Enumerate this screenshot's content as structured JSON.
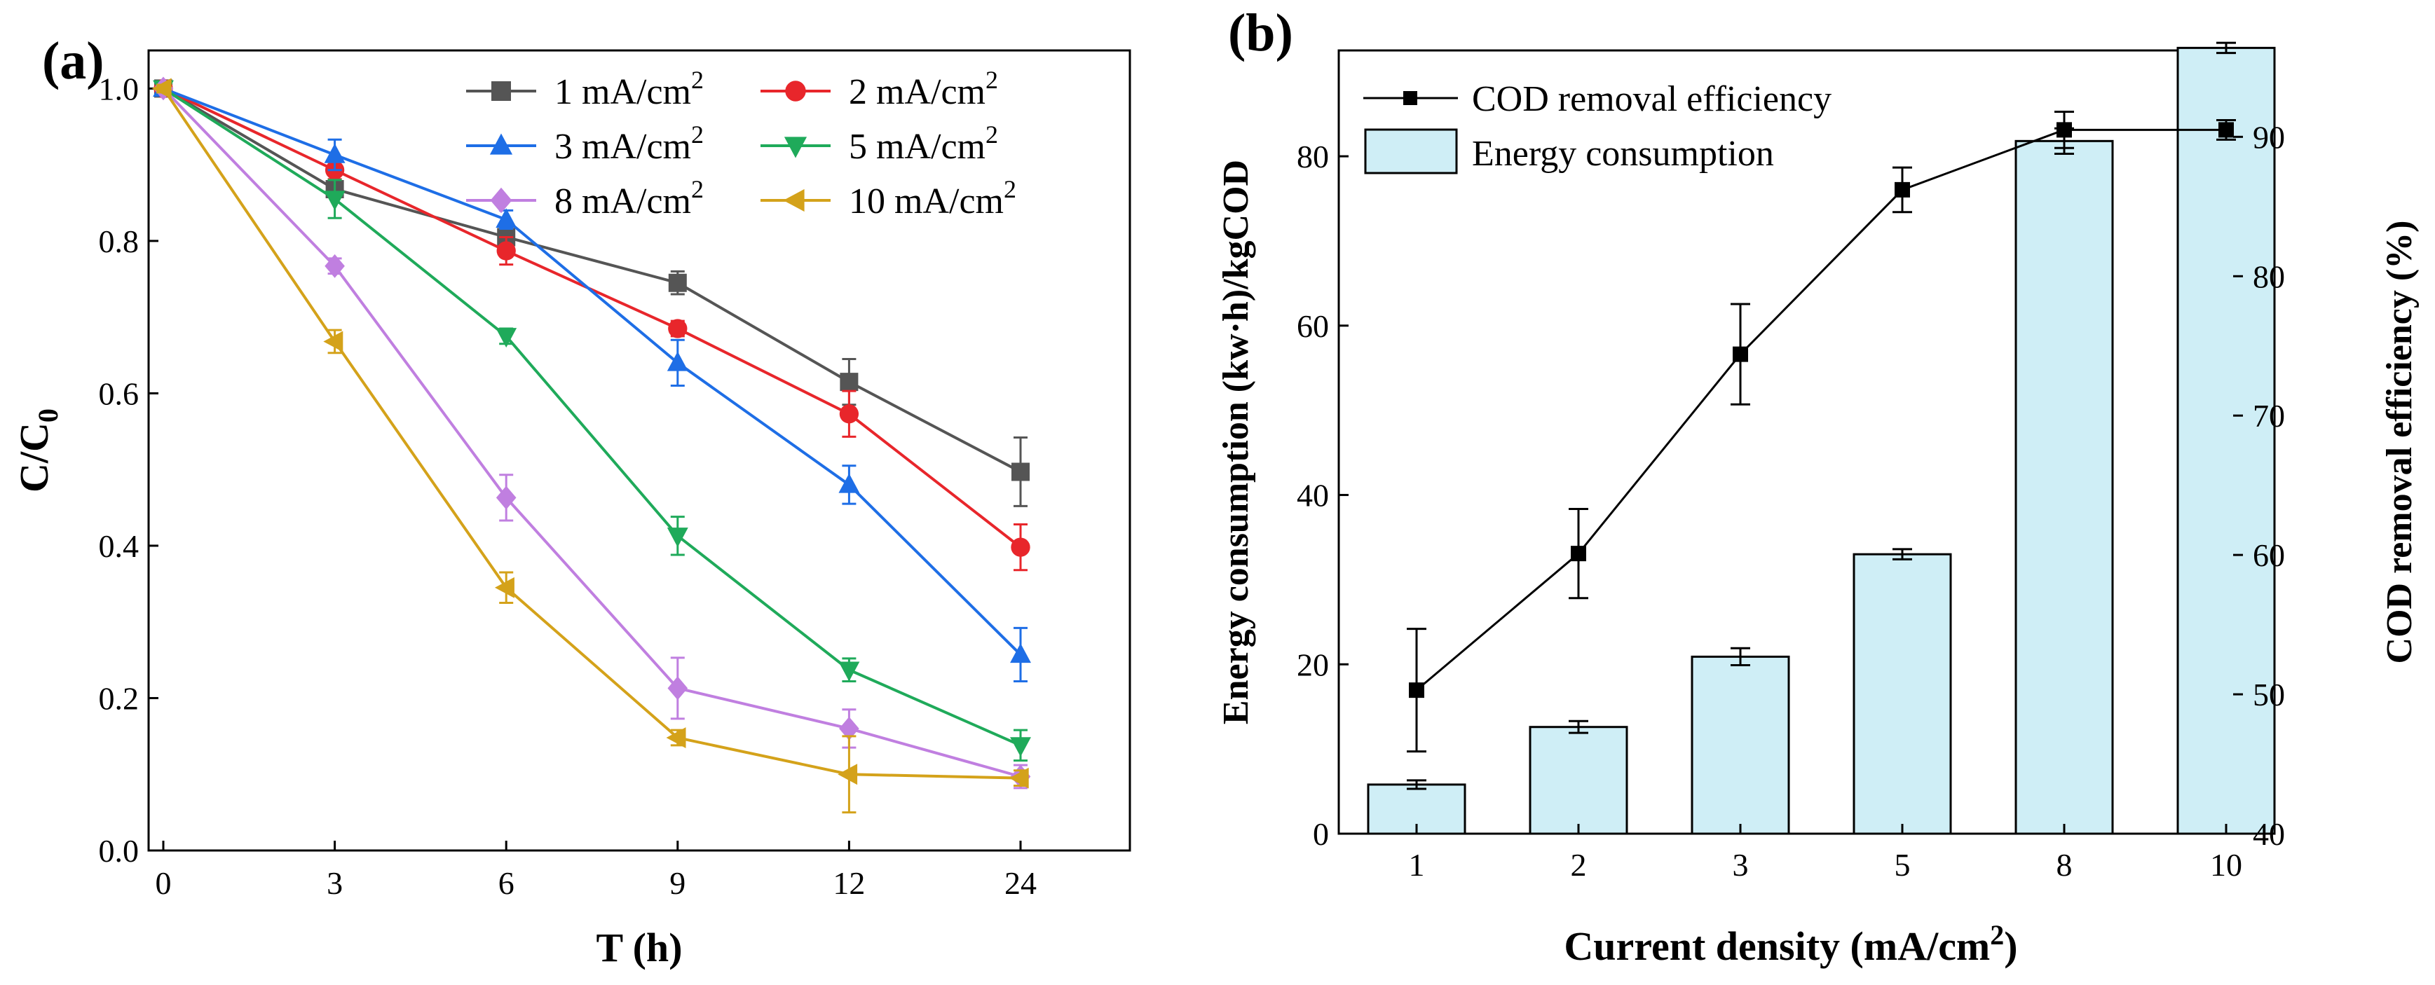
{
  "colors": {
    "axis": "#000000",
    "bar_fill": "#cfeef6",
    "bar_stroke": "#000000"
  },
  "chart_data": [
    {
      "panel": "(a)",
      "type": "line",
      "xlabel": "T (h)",
      "ylabel": "C/C",
      "ylabel_sub": "0",
      "x": [
        "0",
        "3",
        "6",
        "9",
        "12",
        "24"
      ],
      "yticks": [
        "0.0",
        "0.2",
        "0.4",
        "0.6",
        "0.8",
        "1.0"
      ],
      "ylim": [
        0,
        1.05
      ],
      "legend_sup": "2",
      "series": [
        {
          "name": "1 mA/cm",
          "color": "#555555",
          "marker": "square",
          "values": [
            1.0,
            0.868,
            0.805,
            0.745,
            0.615,
            0.497
          ],
          "errors": [
            0.005,
            0.01,
            0.012,
            0.015,
            0.03,
            0.045
          ]
        },
        {
          "name": "2 mA/cm",
          "color": "#e8262b",
          "marker": "circle",
          "values": [
            1.0,
            0.893,
            0.787,
            0.685,
            0.573,
            0.398
          ],
          "errors": [
            0.005,
            0.012,
            0.018,
            0.01,
            0.03,
            0.03
          ]
        },
        {
          "name": "3 mA/cm",
          "color": "#1e6ee6",
          "marker": "triangle-up",
          "values": [
            1.0,
            0.913,
            0.828,
            0.64,
            0.48,
            0.257
          ],
          "errors": [
            0.005,
            0.02,
            0.012,
            0.03,
            0.025,
            0.035
          ]
        },
        {
          "name": "5 mA/cm",
          "color": "#1faa5a",
          "marker": "triangle-down",
          "values": [
            1.0,
            0.855,
            0.675,
            0.413,
            0.237,
            0.138
          ],
          "errors": [
            0.005,
            0.025,
            0.01,
            0.025,
            0.015,
            0.02
          ]
        },
        {
          "name": "8 mA/cm",
          "color": "#c07fe0",
          "marker": "diamond",
          "values": [
            1.0,
            0.767,
            0.463,
            0.213,
            0.16,
            0.097
          ],
          "errors": [
            0.005,
            0.01,
            0.03,
            0.04,
            0.025,
            0.015
          ]
        },
        {
          "name": "10 mA/cm",
          "color": "#d4a21a",
          "marker": "triangle-left",
          "values": [
            1.0,
            0.668,
            0.345,
            0.148,
            0.1,
            0.095
          ],
          "errors": [
            0.005,
            0.015,
            0.02,
            0.01,
            0.05,
            0.01
          ]
        }
      ]
    },
    {
      "panel": "(b)",
      "type": "bar",
      "xlabel": "Current density (mA/cm",
      "xlabel_sup": "2",
      "xlabel_end": ")",
      "ylabel_left": "Energy consumption (kw·h)/kgCOD",
      "ylabel_right": "COD removal efficiency (%)",
      "categories": [
        "1",
        "2",
        "3",
        "5",
        "8",
        "10"
      ],
      "yticks_left": [
        "0",
        "20",
        "40",
        "60",
        "80"
      ],
      "yticks_right": [
        "40",
        "50",
        "60",
        "70",
        "80",
        "90"
      ],
      "ylim_left": [
        0,
        92.5
      ],
      "ylim_right": [
        40,
        96.2
      ],
      "legend": [
        "COD removal efficiency",
        "Energy consumption"
      ],
      "bars": {
        "name": "Energy consumption",
        "values": [
          5.8,
          12.6,
          20.9,
          33.0,
          81.8,
          92.8
        ],
        "errors": [
          0.5,
          0.7,
          1.0,
          0.6,
          1.5,
          0.6
        ]
      },
      "line": {
        "name": "COD removal efficiency",
        "values": [
          50.3,
          60.1,
          74.4,
          86.2,
          90.5,
          90.5
        ],
        "errors": [
          4.4,
          3.2,
          3.6,
          1.6,
          1.3,
          0.7
        ]
      }
    }
  ]
}
